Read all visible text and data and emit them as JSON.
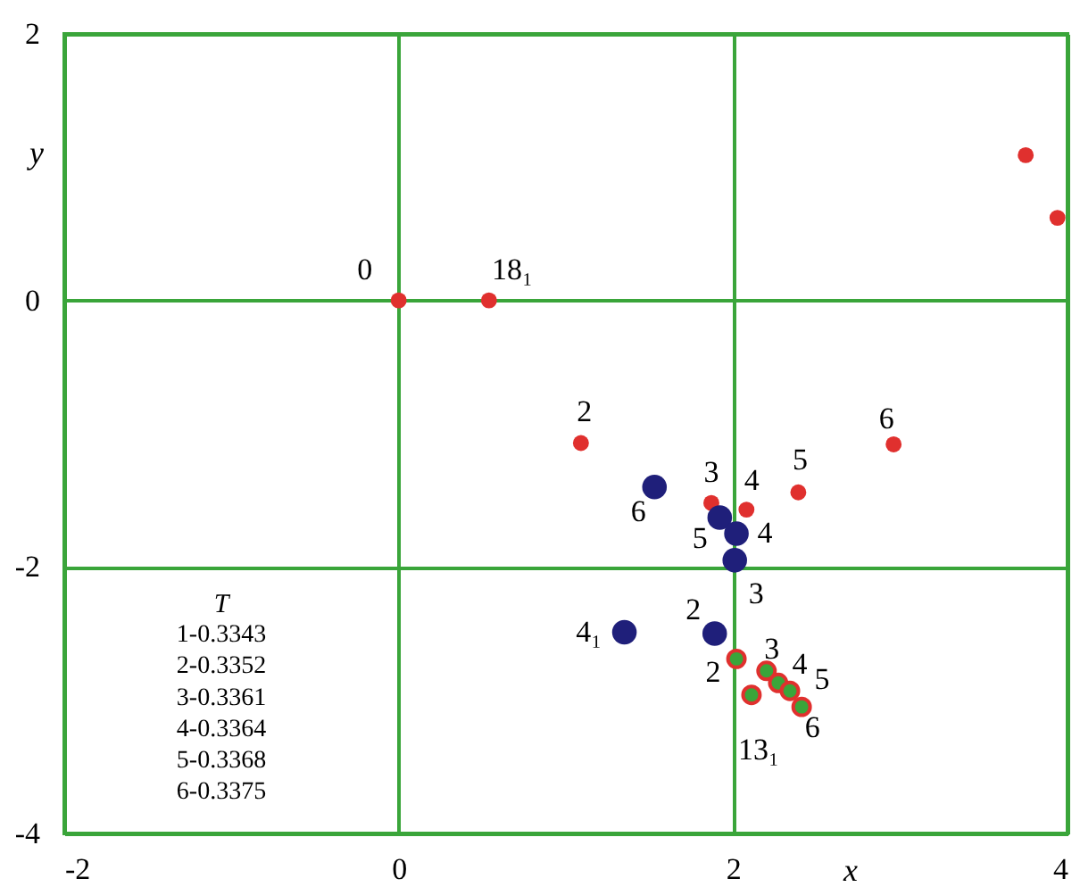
{
  "chart_data": {
    "type": "scatter",
    "xlabel": "x",
    "ylabel": "y",
    "xlim": [
      -2,
      4
    ],
    "ylim": [
      -4,
      2
    ],
    "xticks": [
      -2,
      0,
      2,
      4
    ],
    "yticks": [
      -4,
      -2,
      0,
      2
    ],
    "grid": true,
    "marker": "circle",
    "series": [
      {
        "color": "#e0302e",
        "x": [
          0,
          0.54,
          1.09,
          1.87,
          2.08,
          2.39,
          2.96,
          3.75,
          3.94
        ],
        "values": [
          0,
          0,
          -1.07,
          -1.52,
          -1.57,
          -1.44,
          -1.08,
          1.09,
          0.62
        ]
      },
      {
        "color": "#1f1f7a",
        "x": [
          1.53,
          1.92,
          2.02,
          2.01,
          1.89,
          1.35
        ],
        "values": [
          -1.4,
          -1.63,
          -1.75,
          -1.95,
          -2.5,
          -2.49
        ]
      },
      {
        "color": "#3aa53a",
        "x": [
          2.02,
          2.2,
          2.27,
          2.34,
          2.41,
          2.11
        ],
        "values": [
          -2.69,
          -2.78,
          -2.87,
          -2.93,
          -3.05,
          -2.96
        ]
      }
    ],
    "annotations": [
      {
        "text": "0",
        "x": 0,
        "y": 0
      },
      {
        "text": "18₁",
        "x": 0.54,
        "y": 0
      },
      {
        "text": "2",
        "x": 1.09,
        "y": -1.07
      },
      {
        "text": "3",
        "x": 1.87,
        "y": -1.52
      },
      {
        "text": "4",
        "x": 2.08,
        "y": -1.57
      },
      {
        "text": "5",
        "x": 2.39,
        "y": -1.44
      },
      {
        "text": "6",
        "x": 2.96,
        "y": -1.08
      },
      {
        "text": "6",
        "x": 1.53,
        "y": -1.4
      },
      {
        "text": "5",
        "x": 1.92,
        "y": -1.63
      },
      {
        "text": "4",
        "x": 2.02,
        "y": -1.75
      },
      {
        "text": "3",
        "x": 2.01,
        "y": -1.95
      },
      {
        "text": "2",
        "x": 1.89,
        "y": -2.5
      },
      {
        "text": "4₁",
        "x": 1.35,
        "y": -2.49
      },
      {
        "text": "2",
        "x": 2.02,
        "y": -2.69
      },
      {
        "text": "3",
        "x": 2.2,
        "y": -2.78
      },
      {
        "text": "4",
        "x": 2.27,
        "y": -2.87
      },
      {
        "text": "5",
        "x": 2.34,
        "y": -2.93
      },
      {
        "text": "6",
        "x": 2.41,
        "y": -3.05
      },
      {
        "text": "13₁",
        "x": 2.11,
        "y": -2.96
      },
      "T",
      "1-0.3343",
      "2-0.3352",
      "3-0.3361",
      "4-0.3364",
      "5-0.3368",
      "6-0.3375"
    ]
  }
}
